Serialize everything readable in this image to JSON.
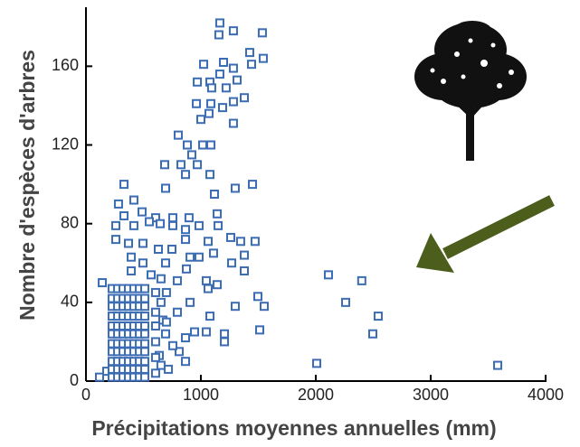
{
  "chart_data": {
    "type": "scatter",
    "xlabel": "Précipitations moyennes annuelles (mm)",
    "ylabel": "Nombre d'espèces d'arbres",
    "color": "#3b6cb4",
    "xlim": [
      0,
      4000
    ],
    "ylim": [
      0,
      190
    ],
    "xticks": [
      0,
      1000,
      2000,
      3000,
      4000
    ],
    "yticks": [
      0,
      40,
      80,
      120,
      160
    ],
    "x": [
      2008,
      2110,
      2260,
      2400,
      2543,
      2496,
      3583,
      1165,
      1283,
      1157,
      1535,
      1425,
      1543,
      1441,
      1024,
      1197,
      1283,
      1165,
      1079,
      1220,
      1315,
      969,
      1094,
      961,
      1087,
      1189,
      1283,
      1378,
      1071,
      1000,
      1283,
      803,
      1016,
      1087,
      882,
      921,
      685,
      827,
      969,
      866,
      1079,
      693,
      1118,
      1299,
      1449,
      331,
      417,
      283,
      488,
      331,
      606,
      756,
      897,
      1142,
      260,
      417,
      756,
      984,
      551,
      646,
      1150,
      866,
      260,
      370,
      496,
      866,
      1063,
      1260,
      1346,
      1472,
      630,
      748,
      906,
      984,
      1110,
      1268,
      1378,
      394,
      496,
      693,
      874,
      1378,
      142,
      394,
      567,
      653,
      795,
      1047,
      1142,
      1063,
      906,
      1079,
      1299,
      1496,
      1551,
      795,
      669,
      1047,
      945,
      1205,
      1512,
      866,
      1205,
      693,
      811,
      638,
      717,
      866,
      756,
      181,
      118,
      606,
      606,
      606,
      606,
      606,
      606,
      653,
      653,
      700,
      700,
      228,
      228,
      228,
      228,
      228,
      228,
      228,
      228,
      228,
      228,
      228,
      276,
      276,
      276,
      276,
      276,
      276,
      276,
      276,
      276,
      276,
      276,
      323,
      323,
      323,
      323,
      323,
      323,
      323,
      323,
      323,
      323,
      323,
      370,
      370,
      370,
      370,
      370,
      370,
      370,
      370,
      370,
      370,
      370,
      417,
      417,
      417,
      417,
      417,
      417,
      417,
      417,
      417,
      417,
      417,
      465,
      465,
      465,
      465,
      465,
      465,
      465,
      465,
      465,
      465,
      465,
      512,
      512,
      512,
      512,
      512,
      512,
      512,
      512,
      512,
      512,
      512
    ],
    "values": [
      9,
      54,
      40,
      51,
      33,
      24,
      8,
      182,
      178,
      176,
      177,
      167,
      164,
      161,
      161,
      162,
      159,
      156,
      152,
      149,
      153,
      152,
      149,
      141,
      141,
      139,
      142,
      144,
      136,
      133,
      131,
      125,
      120,
      120,
      120,
      115,
      110,
      110,
      110,
      105,
      105,
      98,
      95,
      98,
      100,
      100,
      92,
      90,
      86,
      84,
      83,
      83,
      83,
      85,
      79,
      79,
      79,
      79,
      81,
      80,
      79,
      77,
      72,
      70,
      70,
      72,
      71,
      73,
      71,
      71,
      67,
      67,
      63,
      63,
      65,
      60,
      64,
      63,
      60,
      60,
      57,
      56,
      50,
      56,
      54,
      52,
      51,
      51,
      49,
      47,
      40,
      33,
      38,
      43,
      38,
      35,
      31,
      25,
      25,
      24,
      26,
      22,
      20,
      24,
      15,
      13,
      6,
      10,
      18,
      5,
      2,
      45,
      35,
      28,
      20,
      12,
      4,
      40,
      8,
      30,
      45,
      2,
      6,
      10,
      15,
      19,
      24,
      28,
      33,
      38,
      42,
      47,
      2,
      6,
      10,
      15,
      19,
      24,
      28,
      33,
      38,
      42,
      47,
      2,
      6,
      10,
      15,
      19,
      24,
      28,
      33,
      38,
      42,
      47,
      2,
      6,
      10,
      15,
      19,
      24,
      28,
      33,
      38,
      42,
      47,
      2,
      6,
      10,
      15,
      19,
      24,
      28,
      33,
      38,
      42,
      47,
      2,
      6,
      10,
      15,
      19,
      24,
      28,
      33,
      38,
      42,
      47,
      2,
      6,
      10,
      15,
      19,
      24,
      28,
      33,
      38,
      42,
      47
    ]
  }
}
